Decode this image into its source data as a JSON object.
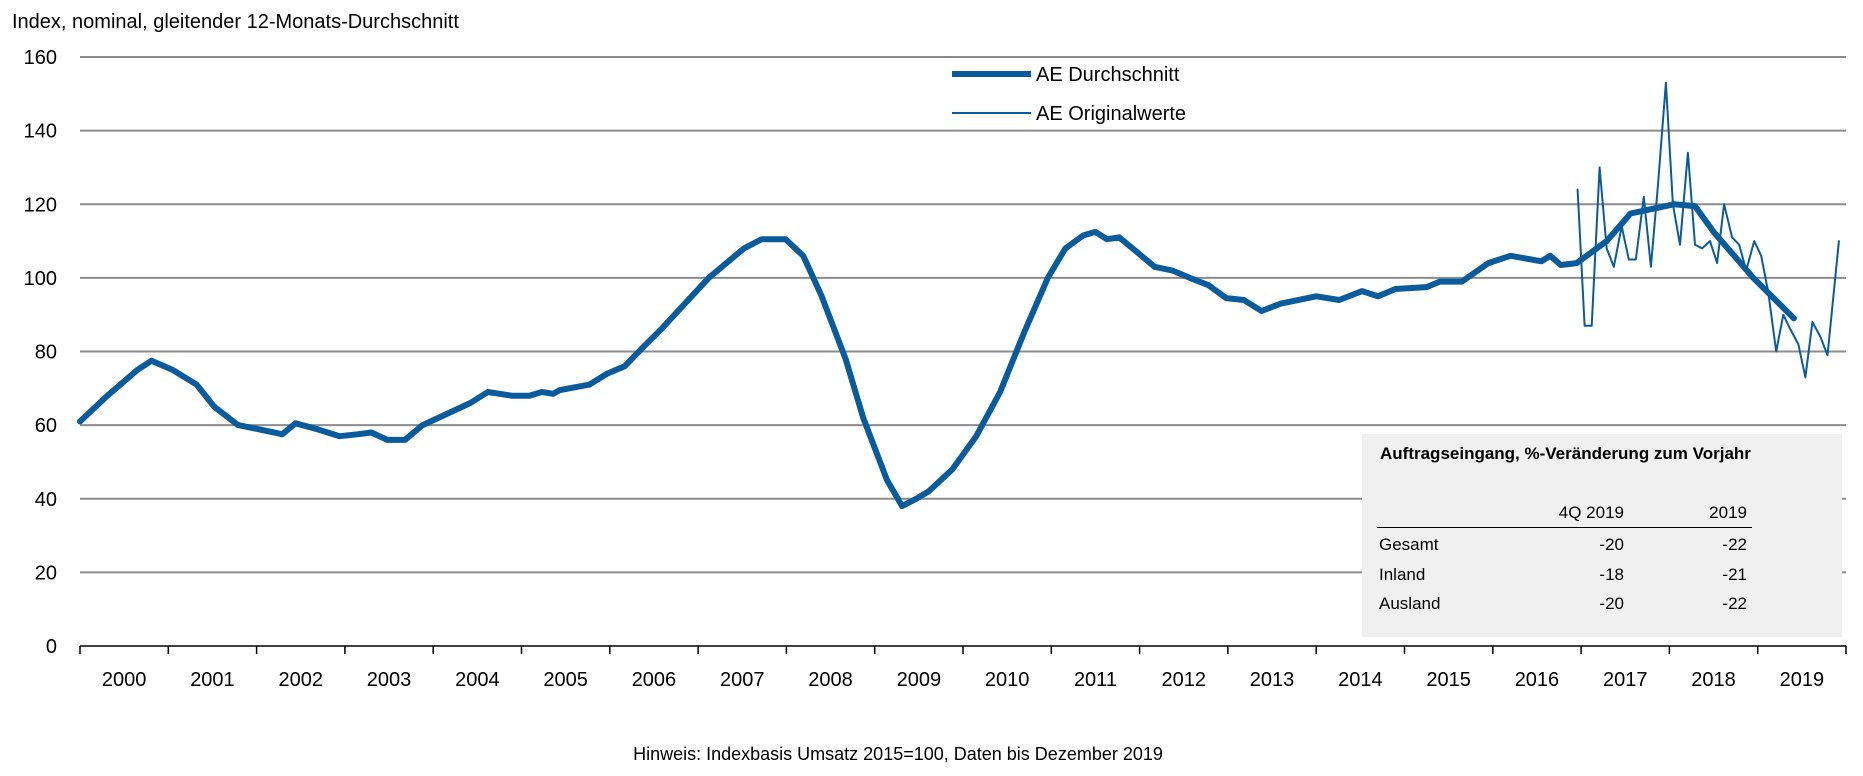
{
  "chart_data": {
    "type": "line",
    "ylabel": "Index, nominal, gleitender 12-Monats-Durchschnitt",
    "ylim": [
      0,
      160
    ],
    "yticks": [
      0,
      20,
      40,
      60,
      80,
      100,
      120,
      140,
      160
    ],
    "xlim": [
      2000,
      2020
    ],
    "xtick_labels": [
      "2000",
      "2001",
      "2002",
      "2003",
      "2004",
      "2005",
      "2006",
      "2007",
      "2008",
      "2009",
      "2010",
      "2011",
      "2012",
      "2013",
      "2014",
      "2015",
      "2016",
      "2017",
      "2018",
      "2019"
    ],
    "grid": "horizontal",
    "legend_placement": "top-center",
    "colors": {
      "series": "#0a5b9c",
      "grid": "#8c8c8c",
      "table_bg": "#f0f0f0"
    },
    "footnote": "Hinweis: Indexbasis Umsatz 2015=100, Daten bis Dezember 2019",
    "series": [
      {
        "name": "AE Durchschnitt",
        "points": [
          [
            2000.0,
            61
          ],
          [
            2000.31,
            68
          ],
          [
            2000.65,
            75
          ],
          [
            2000.81,
            77.5
          ],
          [
            2001.05,
            75
          ],
          [
            2001.32,
            71
          ],
          [
            2001.52,
            65
          ],
          [
            2001.79,
            60
          ],
          [
            2002.2,
            58
          ],
          [
            2002.29,
            57.5
          ],
          [
            2002.44,
            60.5
          ],
          [
            2002.67,
            59
          ],
          [
            2002.94,
            57
          ],
          [
            2003.14,
            57.5
          ],
          [
            2003.3,
            58
          ],
          [
            2003.48,
            56
          ],
          [
            2003.68,
            56
          ],
          [
            2003.88,
            60
          ],
          [
            2004.15,
            63
          ],
          [
            2004.42,
            66
          ],
          [
            2004.62,
            69
          ],
          [
            2004.89,
            68
          ],
          [
            2005.09,
            68
          ],
          [
            2005.23,
            69
          ],
          [
            2005.36,
            68.5
          ],
          [
            2005.43,
            69.5
          ],
          [
            2005.77,
            71
          ],
          [
            2005.97,
            74
          ],
          [
            2006.17,
            76
          ],
          [
            2006.37,
            81
          ],
          [
            2006.58,
            86
          ],
          [
            2006.85,
            93
          ],
          [
            2007.12,
            100
          ],
          [
            2007.32,
            104
          ],
          [
            2007.52,
            108
          ],
          [
            2007.72,
            110.5
          ],
          [
            2007.99,
            110.5
          ],
          [
            2008.19,
            106
          ],
          [
            2008.4,
            95
          ],
          [
            2008.67,
            78
          ],
          [
            2008.87,
            62
          ],
          [
            2009.14,
            45
          ],
          [
            2009.31,
            38
          ],
          [
            2009.47,
            40
          ],
          [
            2009.61,
            42
          ],
          [
            2009.88,
            48
          ],
          [
            2010.15,
            57
          ],
          [
            2010.42,
            69
          ],
          [
            2010.69,
            85
          ],
          [
            2010.96,
            100
          ],
          [
            2011.16,
            108
          ],
          [
            2011.36,
            111.5
          ],
          [
            2011.5,
            112.5
          ],
          [
            2011.63,
            110.5
          ],
          [
            2011.77,
            111
          ],
          [
            2011.97,
            107
          ],
          [
            2012.17,
            103
          ],
          [
            2012.37,
            102
          ],
          [
            2012.57,
            100
          ],
          [
            2012.78,
            98
          ],
          [
            2012.98,
            94.5
          ],
          [
            2013.18,
            94
          ],
          [
            2013.38,
            91
          ],
          [
            2013.6,
            93
          ],
          [
            2014.0,
            95
          ],
          [
            2014.26,
            94
          ],
          [
            2014.52,
            96.4
          ],
          [
            2014.7,
            95
          ],
          [
            2014.9,
            97
          ],
          [
            2015.25,
            97.5
          ],
          [
            2015.4,
            99
          ],
          [
            2015.65,
            99
          ],
          [
            2015.95,
            104
          ],
          [
            2016.2,
            106
          ],
          [
            2016.55,
            104.5
          ],
          [
            2016.65,
            106
          ],
          [
            2016.77,
            103.5
          ],
          [
            2016.95,
            104
          ],
          [
            2017.29,
            110
          ],
          [
            2017.56,
            117.5
          ],
          [
            2018.05,
            120
          ],
          [
            2018.29,
            119.5
          ],
          [
            2018.5,
            112.5
          ],
          [
            2018.95,
            100
          ],
          [
            2019.41,
            89
          ]
        ]
      },
      {
        "name": "AE Originalwerte",
        "points": [
          [
            2016.96,
            124
          ],
          [
            2017.04,
            87
          ],
          [
            2017.12,
            87
          ],
          [
            2017.21,
            130
          ],
          [
            2017.29,
            108
          ],
          [
            2017.37,
            103
          ],
          [
            2017.46,
            114
          ],
          [
            2017.54,
            105
          ],
          [
            2017.62,
            105
          ],
          [
            2017.71,
            122
          ],
          [
            2017.79,
            103
          ],
          [
            2017.87,
            125
          ],
          [
            2017.96,
            153
          ],
          [
            2018.04,
            120
          ],
          [
            2018.12,
            109
          ],
          [
            2018.21,
            134
          ],
          [
            2018.29,
            109
          ],
          [
            2018.37,
            108
          ],
          [
            2018.46,
            110
          ],
          [
            2018.54,
            104
          ],
          [
            2018.62,
            120
          ],
          [
            2018.71,
            111
          ],
          [
            2018.79,
            109
          ],
          [
            2018.87,
            102
          ],
          [
            2018.96,
            110
          ],
          [
            2019.04,
            106
          ],
          [
            2019.12,
            96
          ],
          [
            2019.21,
            80
          ],
          [
            2019.29,
            90
          ],
          [
            2019.37,
            86
          ],
          [
            2019.46,
            82
          ],
          [
            2019.54,
            73
          ],
          [
            2019.62,
            88
          ],
          [
            2019.71,
            84
          ],
          [
            2019.79,
            79
          ],
          [
            2019.92,
            110
          ]
        ]
      }
    ]
  },
  "table": {
    "title": "Auftragseingang, %-Veränderung zum Vorjahr",
    "columns": [
      "",
      "4Q 2019",
      "2019"
    ],
    "rows": [
      [
        "Gesamt",
        "-20",
        "-22"
      ],
      [
        "Inland",
        "-18",
        "-21"
      ],
      [
        "Ausland",
        "-20",
        "-22"
      ]
    ]
  }
}
